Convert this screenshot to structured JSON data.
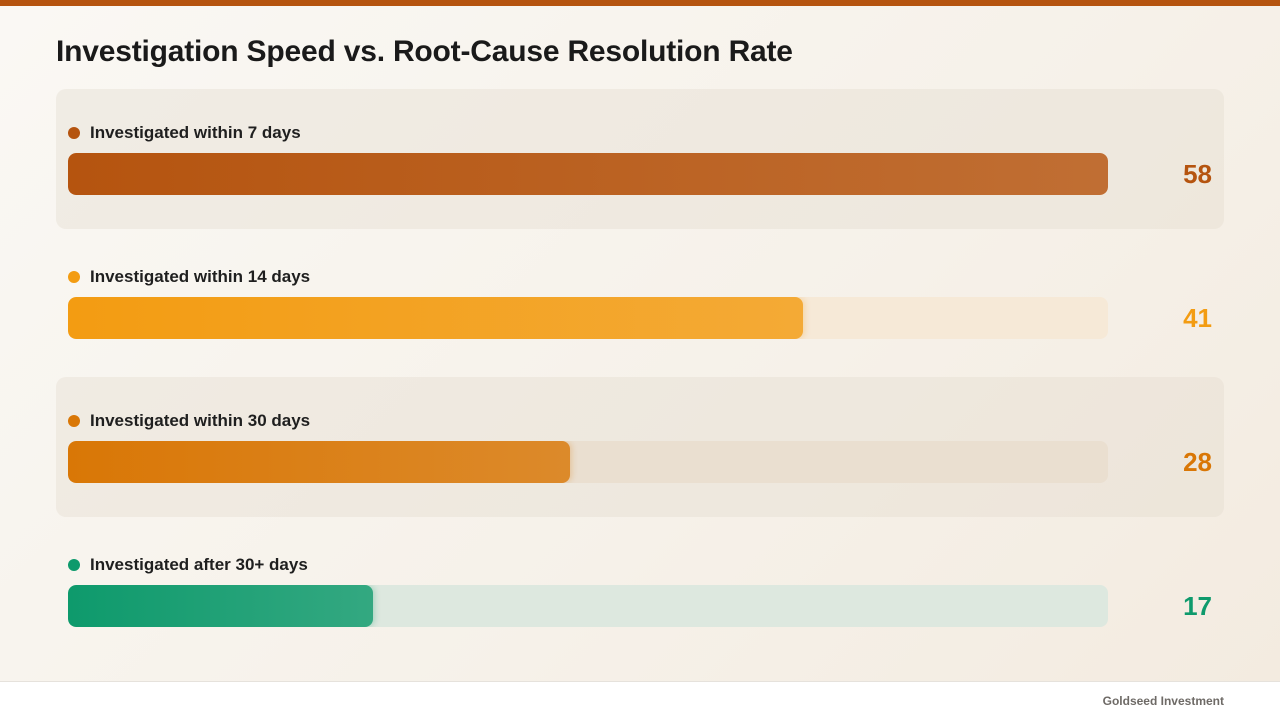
{
  "page": {
    "title": "Investigation Speed vs. Root-Cause Resolution Rate",
    "brand": "Goldseed Investment",
    "accent_color": "#b5540f"
  },
  "chart_data": {
    "type": "bar",
    "orientation": "horizontal",
    "title": "Investigation Speed vs. Root-Cause Resolution Rate",
    "xlabel": "",
    "ylabel": "",
    "xlim": [
      0,
      58
    ],
    "grid": false,
    "categories": [
      "Investigated within 7 days",
      "Investigated within 14 days",
      "Investigated within 30 days",
      "Investigated after 30+ days"
    ],
    "values": [
      58,
      41,
      28,
      17
    ],
    "colors": [
      "#b5540f",
      "#f39c12",
      "#d97706",
      "#0e9a6c"
    ],
    "track_colors": [
      "#f2e6d8",
      "#f6e9d7",
      "#eadfd0",
      "#dde8df"
    ]
  }
}
